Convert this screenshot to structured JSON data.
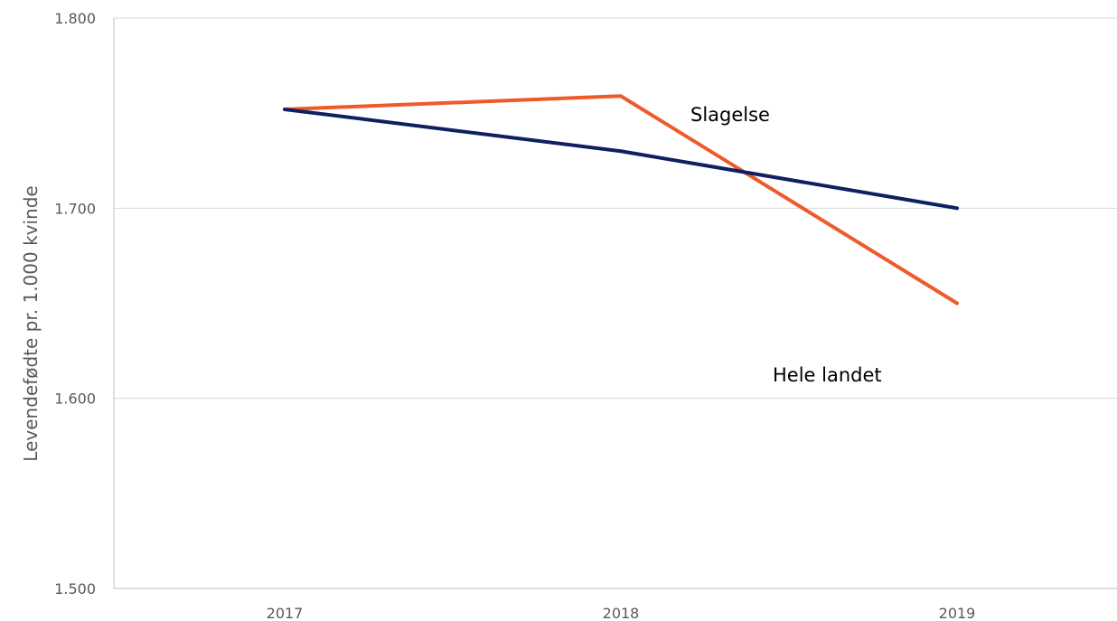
{
  "chart_data": {
    "type": "line",
    "categories": [
      "2017",
      "2018",
      "2019"
    ],
    "ylabel": "Levendefødte pr. 1.000 kvinde",
    "yticks": [
      "1.500",
      "1.600",
      "1.700",
      "1.800"
    ],
    "ytick_values": [
      1500,
      1600,
      1700,
      1800
    ],
    "ylim": [
      1500,
      1800
    ],
    "grid": true,
    "series": [
      {
        "name": "Slagelse",
        "color": "#ee5a2a",
        "values": [
          1752,
          1759,
          1650
        ]
      },
      {
        "name": "Hele landet",
        "color": "#0e2060",
        "values": [
          1752,
          1730,
          1700
        ]
      }
    ]
  }
}
